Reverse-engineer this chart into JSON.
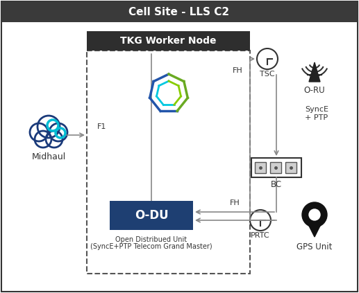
{
  "title": "Cell Site - LLS C2",
  "title_bg": "#3a3a3a",
  "title_color": "#ffffff",
  "bg_color": "#ffffff",
  "border_color": "#333333",
  "tkg_label": "TKG Worker Node",
  "tkg_bg": "#2e2e2e",
  "tkg_text_color": "#ffffff",
  "odu_label": "O-DU",
  "odu_bg": "#1e3f72",
  "odu_text_color": "#ffffff",
  "odu_sublabel1": "Open Distribued Unit",
  "odu_sublabel2": "(SyncE+PTP Telecom Grand Master)",
  "midhaul_label": "Midhaul",
  "bc_label": "BC",
  "tsc_label": "TSC",
  "oru_label": "O-RU",
  "prtc_label": "PRTC",
  "gps_label": "GPS Unit",
  "fh_label1": "FH",
  "fh_label2": "FH",
  "f1_label": "F1",
  "synce_label": "SyncE\n+ PTP",
  "arrow_color": "#888888",
  "dashed_border_color": "#555555",
  "cloud_dark": "#1a3a7a",
  "cloud_light": "#00bcd4",
  "hex_outer_blue": "#2255aa",
  "hex_outer_green": "#6aaa22",
  "hex_inner_cyan": "#00c8e0",
  "hex_inner_green": "#88cc00"
}
